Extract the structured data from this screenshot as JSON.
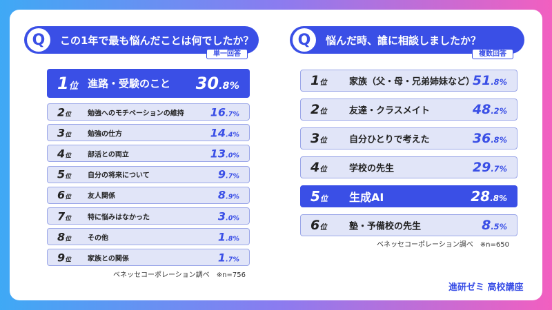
{
  "left": {
    "badge": "Q",
    "question": "この1年で最も悩んだことは何でしたか？",
    "tag": "単一回答",
    "rows": [
      {
        "rank": "1位",
        "label": "進路・受験のこと",
        "value": "30.8%",
        "highlighted": true
      },
      {
        "rank": "2位",
        "label": "勉強へのモチベーションの維持",
        "value": "16.7%"
      },
      {
        "rank": "3位",
        "label": "勉強の仕方",
        "value": "14.4%"
      },
      {
        "rank": "4位",
        "label": "部活との両立",
        "value": "13.0%"
      },
      {
        "rank": "5位",
        "label": "自分の将来について",
        "value": "9.7%"
      },
      {
        "rank": "6位",
        "label": "友人関係",
        "value": "8.9%"
      },
      {
        "rank": "7位",
        "label": "特に悩みはなかった",
        "value": "3.0%"
      },
      {
        "rank": "8位",
        "label": "その他",
        "value": "1.8%"
      },
      {
        "rank": "9位",
        "label": "家族との関係",
        "value": "1.7%"
      }
    ],
    "source": "ベネッセコーポレーション調べ　※n=756"
  },
  "right": {
    "badge": "Q",
    "question": "悩んだ時、誰に相談しましたか？",
    "tag": "複数回答",
    "rows": [
      {
        "rank": "1位",
        "label": "家族（父・母・兄弟姉妹など）",
        "value": "51.8%"
      },
      {
        "rank": "2位",
        "label": "友達・クラスメイト",
        "value": "48.2%"
      },
      {
        "rank": "3位",
        "label": "自分ひとりで考えた",
        "value": "36.8%"
      },
      {
        "rank": "4位",
        "label": "学校の先生",
        "value": "29.7%"
      },
      {
        "rank": "5位",
        "label": "生成AI",
        "value": "28.8%",
        "highlighted": true
      },
      {
        "rank": "6位",
        "label": "塾・予備校の先生",
        "value": "8.5%"
      }
    ],
    "source": "ベネッセコーポレーション調べ　※n=650"
  },
  "logo": "進研ゼミ 高校講座"
}
